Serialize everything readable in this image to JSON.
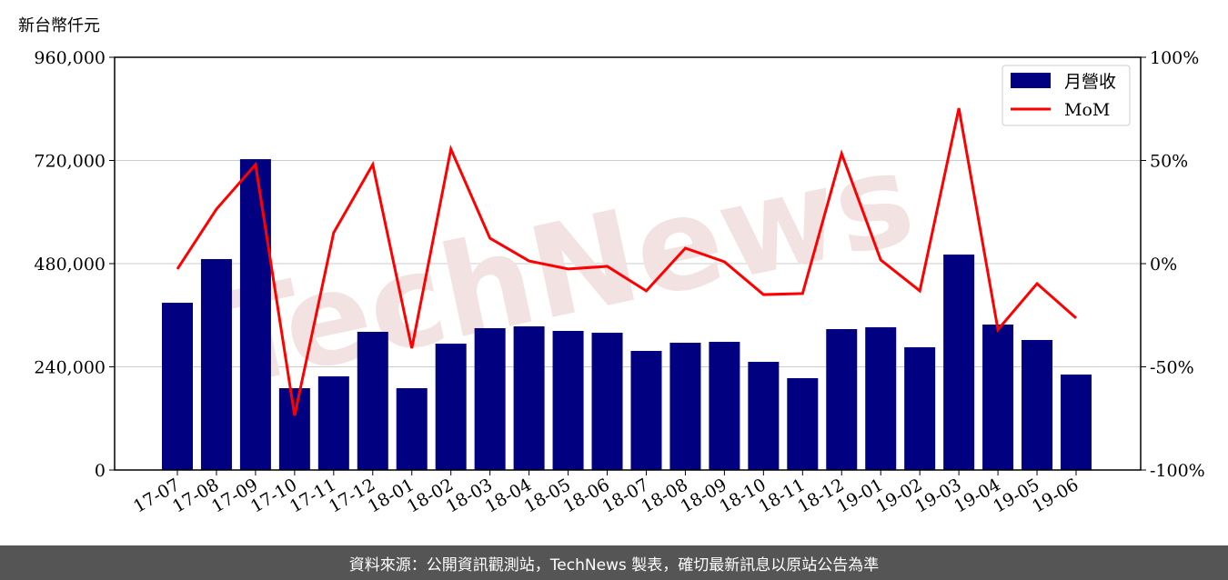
{
  "chart_data": {
    "type": "bar+line",
    "ylabel": "新台幣仟元",
    "categories": [
      "17-07",
      "17-08",
      "17-09",
      "17-10",
      "17-11",
      "17-12",
      "18-01",
      "18-02",
      "18-03",
      "18-04",
      "18-05",
      "18-06",
      "18-07",
      "18-08",
      "18-09",
      "18-10",
      "18-11",
      "18-12",
      "19-01",
      "19-02",
      "19-03",
      "19-04",
      "19-05",
      "19-06"
    ],
    "series": [
      {
        "name": "月營收",
        "type": "bar",
        "axis": "left",
        "color": "#000080",
        "values": [
          389000,
          490600,
          723000,
          190300,
          217800,
          321400,
          190300,
          293900,
          329900,
          334100,
          323500,
          319300,
          277000,
          296000,
          298100,
          251600,
          213600,
          327700,
          332000,
          285500,
          501100,
          338300,
          302400,
          222000
        ]
      },
      {
        "name": "MoM",
        "type": "line",
        "axis": "right",
        "color": "#ff0000",
        "values": [
          -2.6,
          26.4,
          48,
          -73.6,
          15,
          48,
          -41,
          55.5,
          12.3,
          1.3,
          -2.6,
          -1.3,
          -13.2,
          7.5,
          0.9,
          -15,
          -14.5,
          53.3,
          1.8,
          -13.2,
          75.3,
          -32,
          -9.7,
          -26.4
        ]
      }
    ],
    "left_ylim": [
      0,
      960000
    ],
    "left_ticks": [
      "0",
      "240,000",
      "480,000",
      "720,000",
      "960,000"
    ],
    "right_ylim": [
      -100,
      100
    ],
    "right_ticks": [
      "-100%",
      "-50%",
      "0%",
      "50%",
      "100%"
    ],
    "grid": "horizontal",
    "legend_placement": "top-right"
  },
  "watermark": "TechNews",
  "footer": "資料來源：公開資訊觀測站，TechNews 製表，確切最新訊息以原站公告為準"
}
